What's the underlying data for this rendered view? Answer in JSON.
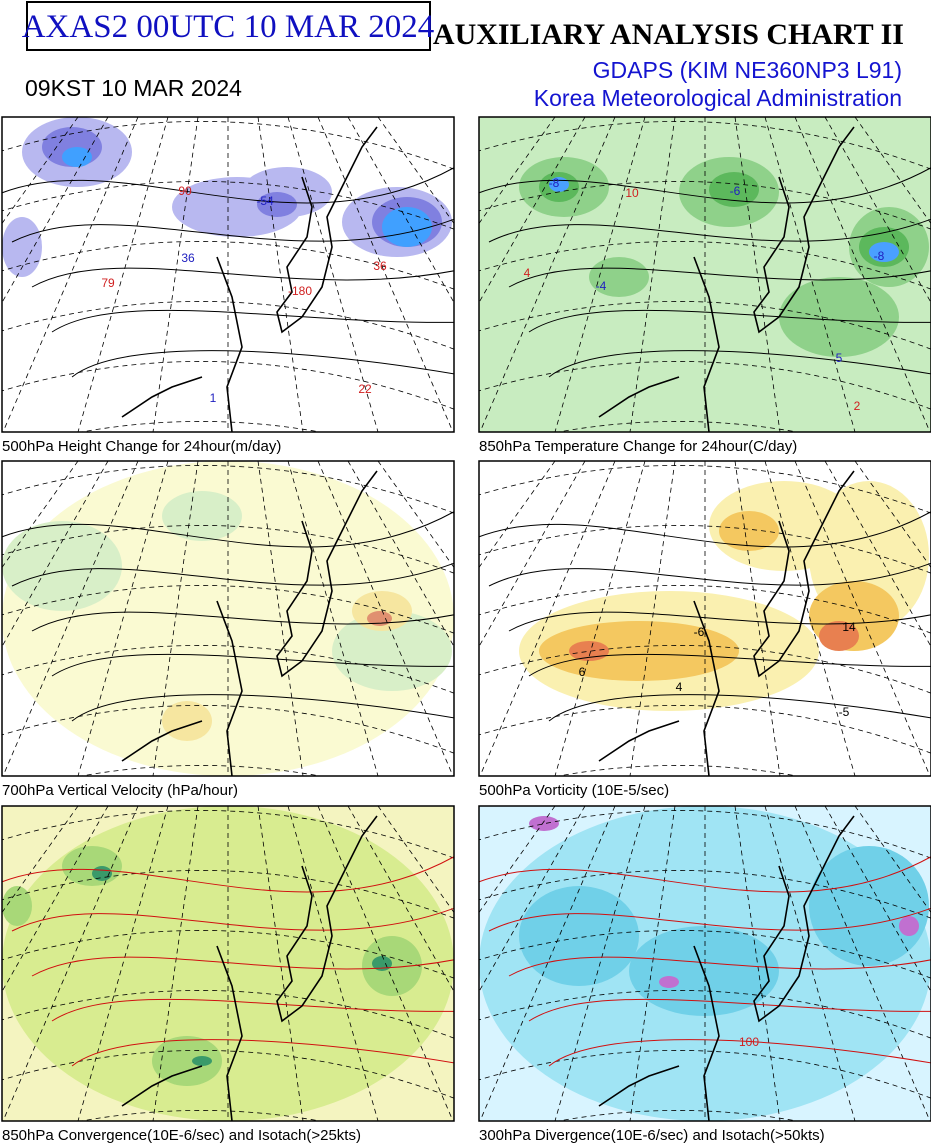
{
  "header": {
    "code_box": "AXAS2  00UTC 10 MAR 2024",
    "kst_time": "09KST 10 MAR 2024",
    "title": "AUXILIARY ANALYSIS CHART II",
    "model": "GDAPS (KIM NE360NP3 L91)",
    "agency": "Korea Meteorological Administration"
  },
  "panels": [
    {
      "caption": "500hPa Height Change for 24hour(m/day)",
      "labels": [
        "-54",
        "36",
        "79",
        "90",
        "-180",
        "36",
        "22",
        "1"
      ]
    },
    {
      "caption": "850hPa Temperature Change for 24hour(C/day)",
      "labels": [
        "-8",
        "-6",
        "10",
        "4",
        "-4",
        "-8",
        "5",
        "2"
      ]
    },
    {
      "caption": "700hPa Vertical Velocity (hPa/hour)"
    },
    {
      "caption": "500hPa Vorticity (10E-5/sec)",
      "labels": [
        "-6",
        "4",
        "-5",
        "6",
        "14"
      ]
    },
    {
      "caption": "850hPa Convergence(10E-6/sec) and Isotach(>25kts)"
    },
    {
      "caption": "300hPa Divergence(10E-6/sec) and Isotach(>50kts)",
      "labels": [
        "100"
      ]
    }
  ]
}
